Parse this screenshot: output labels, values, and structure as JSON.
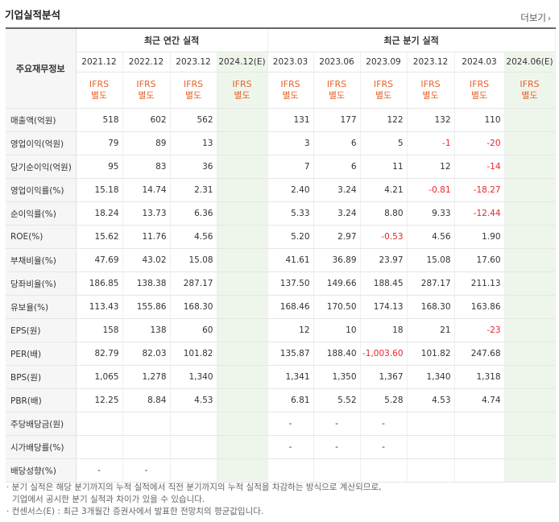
{
  "page": {
    "title": "기업실적분석",
    "more_label": "더보기"
  },
  "table": {
    "corner_label": "주요재무정보",
    "group_labels": [
      "최근 연간 실적",
      "최근 분기 실적"
    ],
    "annual_periods": [
      "2021.12",
      "2022.12",
      "2023.12",
      "2024.12(E)"
    ],
    "quarter_periods": [
      "2023.03",
      "2023.06",
      "2023.09",
      "2023.12",
      "2024.03",
      "2024.06(E)"
    ],
    "basis_line1": "IFRS",
    "basis_line2": "별도",
    "rows": [
      {
        "label": "매출액(억원)",
        "values": [
          "518",
          "602",
          "562",
          "",
          "131",
          "177",
          "122",
          "132",
          "110",
          ""
        ]
      },
      {
        "label": "영업이익(억원)",
        "values": [
          "79",
          "89",
          "13",
          "",
          "3",
          "6",
          "5",
          "-1",
          "-20",
          ""
        ]
      },
      {
        "label": "당기순이익(억원)",
        "values": [
          "95",
          "83",
          "36",
          "",
          "7",
          "6",
          "11",
          "12",
          "-14",
          ""
        ]
      },
      {
        "label": "영업이익률(%)",
        "values": [
          "15.18",
          "14.74",
          "2.31",
          "",
          "2.40",
          "3.24",
          "4.21",
          "-0.81",
          "-18.27",
          ""
        ]
      },
      {
        "label": "순이익률(%)",
        "values": [
          "18.24",
          "13.73",
          "6.36",
          "",
          "5.33",
          "3.24",
          "8.80",
          "9.33",
          "-12.44",
          ""
        ]
      },
      {
        "label": "ROE(%)",
        "values": [
          "15.62",
          "11.76",
          "4.56",
          "",
          "5.20",
          "2.97",
          "-0.53",
          "4.56",
          "1.90",
          ""
        ]
      },
      {
        "label": "부채비율(%)",
        "values": [
          "47.69",
          "43.02",
          "15.08",
          "",
          "41.61",
          "36.89",
          "23.97",
          "15.08",
          "17.60",
          ""
        ]
      },
      {
        "label": "당좌비율(%)",
        "values": [
          "186.85",
          "138.38",
          "287.17",
          "",
          "137.50",
          "149.66",
          "188.45",
          "287.17",
          "211.13",
          ""
        ]
      },
      {
        "label": "유보율(%)",
        "values": [
          "113.43",
          "155.86",
          "168.30",
          "",
          "168.46",
          "170.50",
          "174.13",
          "168.30",
          "163.86",
          ""
        ]
      },
      {
        "label": "EPS(원)",
        "values": [
          "158",
          "138",
          "60",
          "",
          "12",
          "10",
          "18",
          "21",
          "-23",
          ""
        ]
      },
      {
        "label": "PER(배)",
        "values": [
          "82.79",
          "82.03",
          "101.82",
          "",
          "135.87",
          "188.40",
          "-1,003.60",
          "101.82",
          "247.68",
          ""
        ]
      },
      {
        "label": "BPS(원)",
        "values": [
          "1,065",
          "1,278",
          "1,340",
          "",
          "1,341",
          "1,350",
          "1,367",
          "1,340",
          "1,318",
          ""
        ]
      },
      {
        "label": "PBR(배)",
        "values": [
          "12.25",
          "8.84",
          "4.53",
          "",
          "6.81",
          "5.52",
          "5.28",
          "4.53",
          "4.74",
          ""
        ]
      },
      {
        "label": "주당배당금(원)",
        "values": [
          "",
          "",
          "",
          "",
          "-",
          "-",
          "-",
          "",
          "",
          ""
        ]
      },
      {
        "label": "시가배당률(%)",
        "values": [
          "",
          "",
          "",
          "",
          "-",
          "-",
          "-",
          "",
          "",
          ""
        ]
      },
      {
        "label": "배당성향(%)",
        "values": [
          "-",
          "-",
          "",
          "",
          "",
          "",
          "",
          "",
          "",
          ""
        ]
      }
    ]
  },
  "notes": {
    "line1": "· 분기 실적은 해당 분기까지의 누적 실적에서 직전 분기까지의 누적 실적을 차감하는 방식으로 계산되므로,",
    "line2": "기업에서 공시한 분기 실적과 차이가 있을 수 있습니다.",
    "line3": "· 컨센서스(E) : 최근 3개월간 증권사에서 발표한 전망치의 평균값입니다."
  },
  "colors": {
    "negative": "#e8262a",
    "basis": "#e8622a",
    "estimate_bg": "#eef6ec"
  }
}
